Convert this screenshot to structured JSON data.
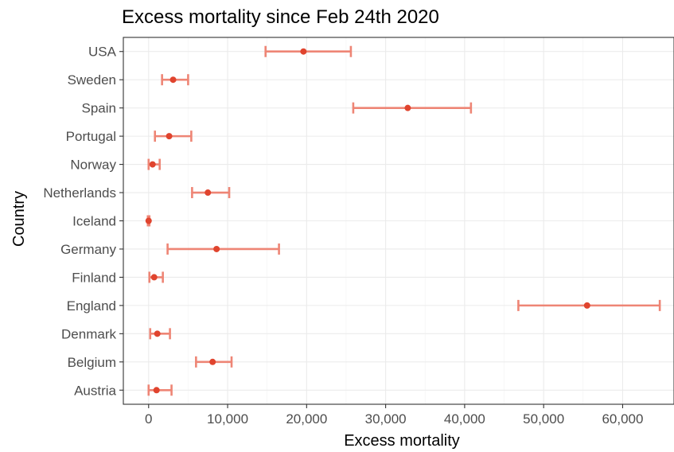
{
  "chart_data": {
    "type": "scatter",
    "title": "Excess mortality since Feb 24th 2020",
    "xlabel": "Excess mortality",
    "ylabel": "Country",
    "xlim": [
      -3200,
      66500
    ],
    "xticks": [
      0,
      10000,
      20000,
      30000,
      40000,
      50000,
      60000
    ],
    "xtick_labels": [
      "0",
      "10,000",
      "20,000",
      "30,000",
      "40,000",
      "50,000",
      "60,000"
    ],
    "grid": true,
    "colors": {
      "point": "#e0442e",
      "errorbar": "#ee8575"
    },
    "categories": [
      "USA",
      "Sweden",
      "Spain",
      "Portugal",
      "Norway",
      "Netherlands",
      "Iceland",
      "Germany",
      "Finland",
      "England",
      "Denmark",
      "Belgium",
      "Austria"
    ],
    "series": [
      {
        "values": [
          19600,
          3100,
          32800,
          2600,
          500,
          7500,
          0,
          8600,
          700,
          55500,
          1100,
          8100,
          1000
        ],
        "lower": [
          14800,
          1700,
          25900,
          800,
          0,
          5500,
          -100,
          2400,
          100,
          46800,
          200,
          6000,
          0
        ],
        "upper": [
          25600,
          5000,
          40800,
          5400,
          1400,
          10200,
          100,
          16500,
          1800,
          64700,
          2700,
          10500,
          2900
        ]
      }
    ]
  }
}
